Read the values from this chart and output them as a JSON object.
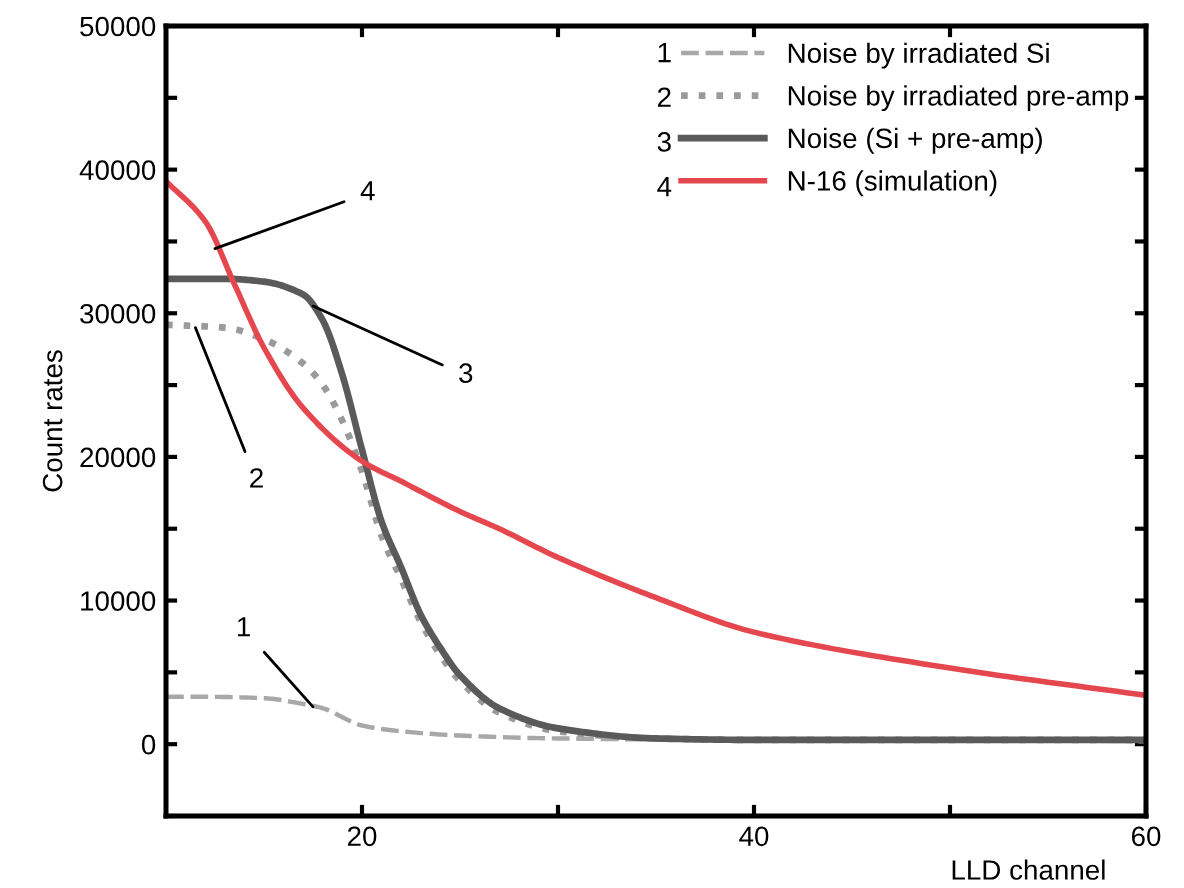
{
  "chart_data": {
    "type": "line",
    "xlabel": "LLD channel",
    "ylabel": "Count rates",
    "xlim": [
      10,
      60
    ],
    "ylim": [
      -5000,
      50000
    ],
    "xticks": [
      20,
      {
        "value": 30,
        "label": null
      },
      40,
      {
        "value": 50,
        "label": null
      },
      60
    ],
    "yticks": [
      {
        "value": -5000,
        "label": null
      },
      0,
      {
        "value": 5000,
        "label": null
      },
      10000,
      {
        "value": 15000,
        "label": null
      },
      20000,
      {
        "value": 25000,
        "label": null
      },
      30000,
      {
        "value": 35000,
        "label": null
      },
      40000,
      {
        "value": 45000,
        "label": null
      },
      50000
    ],
    "grid": false,
    "legend": "top right",
    "series": [
      {
        "name": "Noise by irradiated Si",
        "color": "#a8a8a8",
        "line_style": "dashed",
        "x": [
          10,
          12,
          15,
          17,
          18,
          20,
          22,
          25,
          30,
          40,
          50,
          60
        ],
        "values": [
          3300,
          3300,
          3200,
          2800,
          2500,
          1300,
          900,
          600,
          400,
          300,
          300,
          200
        ]
      },
      {
        "name": "Noise by irradiated pre-amp",
        "color": "#9a9a9a",
        "line_style": "dotted",
        "x": [
          10,
          13,
          15,
          17,
          18,
          19,
          20,
          21,
          22,
          23,
          24,
          25,
          27,
          30,
          35,
          40,
          50,
          60
        ],
        "values": [
          29200,
          29000,
          28200,
          26500,
          25000,
          22500,
          19000,
          14500,
          11500,
          8500,
          6200,
          4400,
          2200,
          900,
          400,
          300,
          300,
          300
        ]
      },
      {
        "name": "Noise (Si + pre-amp)",
        "color": "#5a5a5a",
        "line_style": "solid",
        "x": [
          10,
          13,
          15,
          17,
          18,
          19,
          20,
          21,
          22,
          23,
          24,
          25,
          27,
          30,
          35,
          40,
          50,
          60
        ],
        "values": [
          32400,
          32400,
          32200,
          31300,
          29500,
          25700,
          20500,
          15500,
          12300,
          9000,
          6700,
          4800,
          2500,
          1100,
          400,
          300,
          300,
          300
        ]
      },
      {
        "name": "N-16 (simulation)",
        "color": "#e5474f",
        "line_style": "solid",
        "x": [
          10,
          12,
          13.5,
          15,
          17,
          20,
          22,
          25,
          27,
          30,
          35,
          40,
          50,
          60
        ],
        "values": [
          39200,
          36400,
          32000,
          27600,
          23400,
          19700,
          18300,
          16200,
          15000,
          13000,
          10200,
          7800,
          5300,
          3400
        ]
      }
    ],
    "annotations": [
      {
        "text": "1",
        "x": 17.5,
        "y": 2600
      },
      {
        "text": "2",
        "x": 11.5,
        "y": 29000
      },
      {
        "text": "3",
        "x": 17.5,
        "y": 30500
      },
      {
        "text": "4",
        "x": 12.5,
        "y": 34500
      }
    ]
  }
}
